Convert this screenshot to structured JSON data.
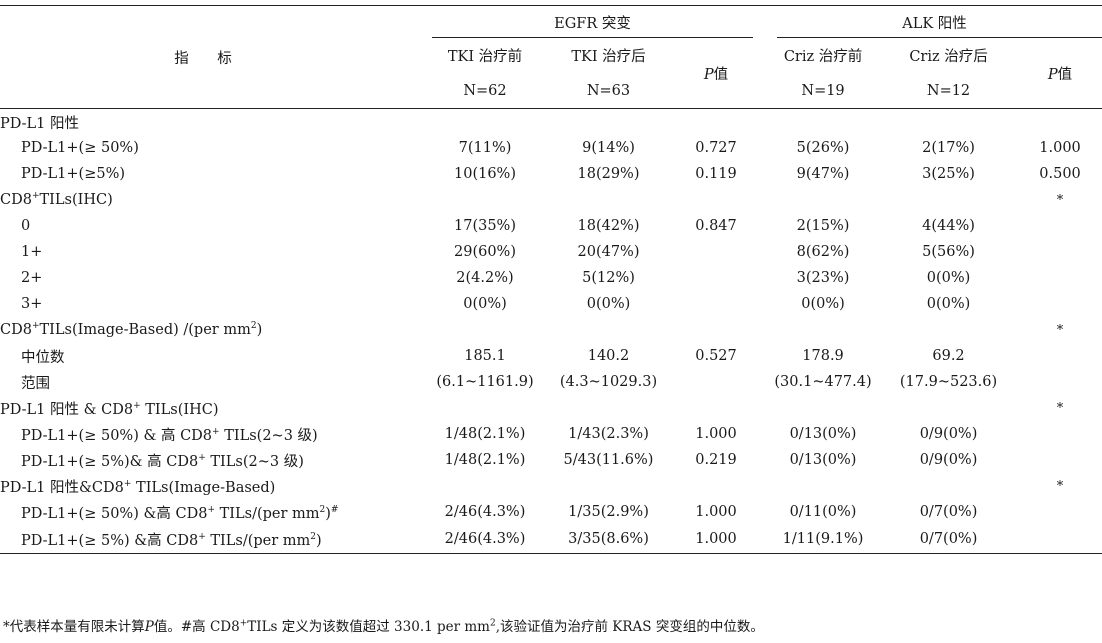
{
  "header": {
    "indicator": "指 标",
    "egfr_group": "EGFR 突变",
    "alk_group": "ALK 阳性",
    "cols": [
      {
        "title": "TKI 治疗前",
        "n": "N=62"
      },
      {
        "title": "TKI 治疗后",
        "n": "N=63"
      },
      {
        "title": "值",
        "p_prefix": "P"
      },
      {
        "title": "Criz 治疗前",
        "n": "N=19"
      },
      {
        "title": "Criz 治疗后",
        "n": "N=12"
      },
      {
        "title": "值",
        "p_prefix": "P"
      }
    ]
  },
  "rows": [
    {
      "label": "PD-L1 阳性",
      "sub": false,
      "cells": [
        "",
        "",
        "",
        "",
        "",
        ""
      ]
    },
    {
      "label": "PD-L1+(≥ 50%)",
      "sub": true,
      "cells": [
        "7(11%)",
        "9(14%)",
        "0.727",
        "5(26%)",
        "2(17%)",
        "1.000"
      ]
    },
    {
      "label": "PD-L1+(≥5%)",
      "sub": true,
      "cells": [
        "10(16%)",
        "18(29%)",
        "0.119",
        "9(47%)",
        "3(25%)",
        "0.500"
      ]
    },
    {
      "label_pre": "CD8",
      "label_sup": "+",
      "label_post": "TILs(IHC)",
      "sub": false,
      "cells": [
        "",
        "",
        "",
        "",
        "",
        "*"
      ]
    },
    {
      "label": "0",
      "sub": true,
      "cells": [
        "17(35%)",
        "18(42%)",
        "0.847",
        "2(15%)",
        "4(44%)",
        ""
      ]
    },
    {
      "label": "1+",
      "sub": true,
      "cells": [
        "29(60%)",
        "20(47%)",
        "",
        "8(62%)",
        "5(56%)",
        ""
      ]
    },
    {
      "label": "2+",
      "sub": true,
      "cells": [
        "2(4.2%)",
        "5(12%)",
        "",
        "3(23%)",
        "0(0%)",
        ""
      ]
    },
    {
      "label": "3+",
      "sub": true,
      "cells": [
        "0(0%)",
        "0(0%)",
        "",
        "0(0%)",
        "0(0%)",
        ""
      ]
    },
    {
      "label_pre": "CD8",
      "label_sup": "+",
      "label_post": "TILs(Image-Based) /(per mm",
      "label_sup2": "2",
      "label_end": ")",
      "sub": false,
      "cells": [
        "",
        "",
        "",
        "",
        "",
        "*"
      ]
    },
    {
      "label": "中位数",
      "sub": true,
      "cells": [
        "185.1",
        "140.2",
        "0.527",
        "178.9",
        "69.2",
        ""
      ]
    },
    {
      "label": "范围",
      "sub": true,
      "cells": [
        "(6.1~1161.9)",
        "(4.3~1029.3)",
        "",
        "(30.1~477.4)",
        "(17.9~523.6)",
        ""
      ]
    },
    {
      "label_pre": "PD-L1 阳性 & CD8",
      "label_sup": "+",
      "label_post": " TILs(IHC)",
      "sub": false,
      "cells": [
        "",
        "",
        "",
        "",
        "",
        "*"
      ]
    },
    {
      "label_pre": "PD-L1+(≥ 50%) & 高 CD8",
      "label_sup": "+",
      "label_post": " TILs(2~3 级)",
      "sub": true,
      "cells": [
        "1/48(2.1%)",
        "1/43(2.3%)",
        "1.000",
        "0/13(0%)",
        "0/9(0%)",
        ""
      ]
    },
    {
      "label_pre": "PD-L1+(≥ 5%)& 高 CD8",
      "label_sup": "+",
      "label_post": " TILs(2~3 级)",
      "sub": true,
      "cells": [
        "1/48(2.1%)",
        "5/43(11.6%)",
        "0.219",
        "0/13(0%)",
        "0/9(0%)",
        ""
      ]
    },
    {
      "label_pre": "PD-L1 阳性&CD8",
      "label_sup": "+",
      "label_post": " TILs(Image-Based)",
      "sub": false,
      "cells": [
        "",
        "",
        "",
        "",
        "",
        "*"
      ]
    },
    {
      "label_pre": "PD-L1+(≥ 50%) &高 CD8",
      "label_sup": "+",
      "label_post": " TILs/(per mm",
      "label_sup2": "2",
      "label_end": ")",
      "label_sup3": "#",
      "sub": true,
      "cells": [
        "2/46(4.3%)",
        "1/35(2.9%)",
        "1.000",
        "0/11(0%)",
        "0/7(0%)",
        ""
      ]
    },
    {
      "label_pre": "PD-L1+(≥ 5%) &高 CD8",
      "label_sup": "+",
      "label_post": " TILs/(per mm",
      "label_sup2": "2",
      "label_end": ")",
      "sub": true,
      "cells": [
        "2/46(4.3%)",
        "3/35(8.6%)",
        "1.000",
        "1/11(9.1%)",
        "0/7(0%)",
        ""
      ]
    }
  ],
  "footnote": {
    "part1": "*代表样本量有限未计算",
    "p": "P",
    "part2": "值。#高 CD8",
    "sup1": "+",
    "part3": "TILs 定义为该数值超过 330.1 per mm",
    "sup2": "2",
    "part4": ",该验证值为治疗前 KRAS 突变组的中位数。"
  }
}
